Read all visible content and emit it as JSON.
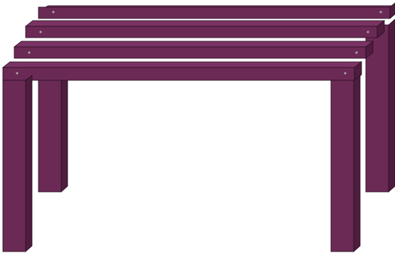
{
  "image": {
    "subject": "bench-icon",
    "colors": {
      "background": "#ffffff",
      "front": "#6b2a55",
      "top": "#7a3364",
      "side": "#4e1d3e",
      "outline": "#2a1020",
      "bolt": "#b99aac"
    }
  }
}
